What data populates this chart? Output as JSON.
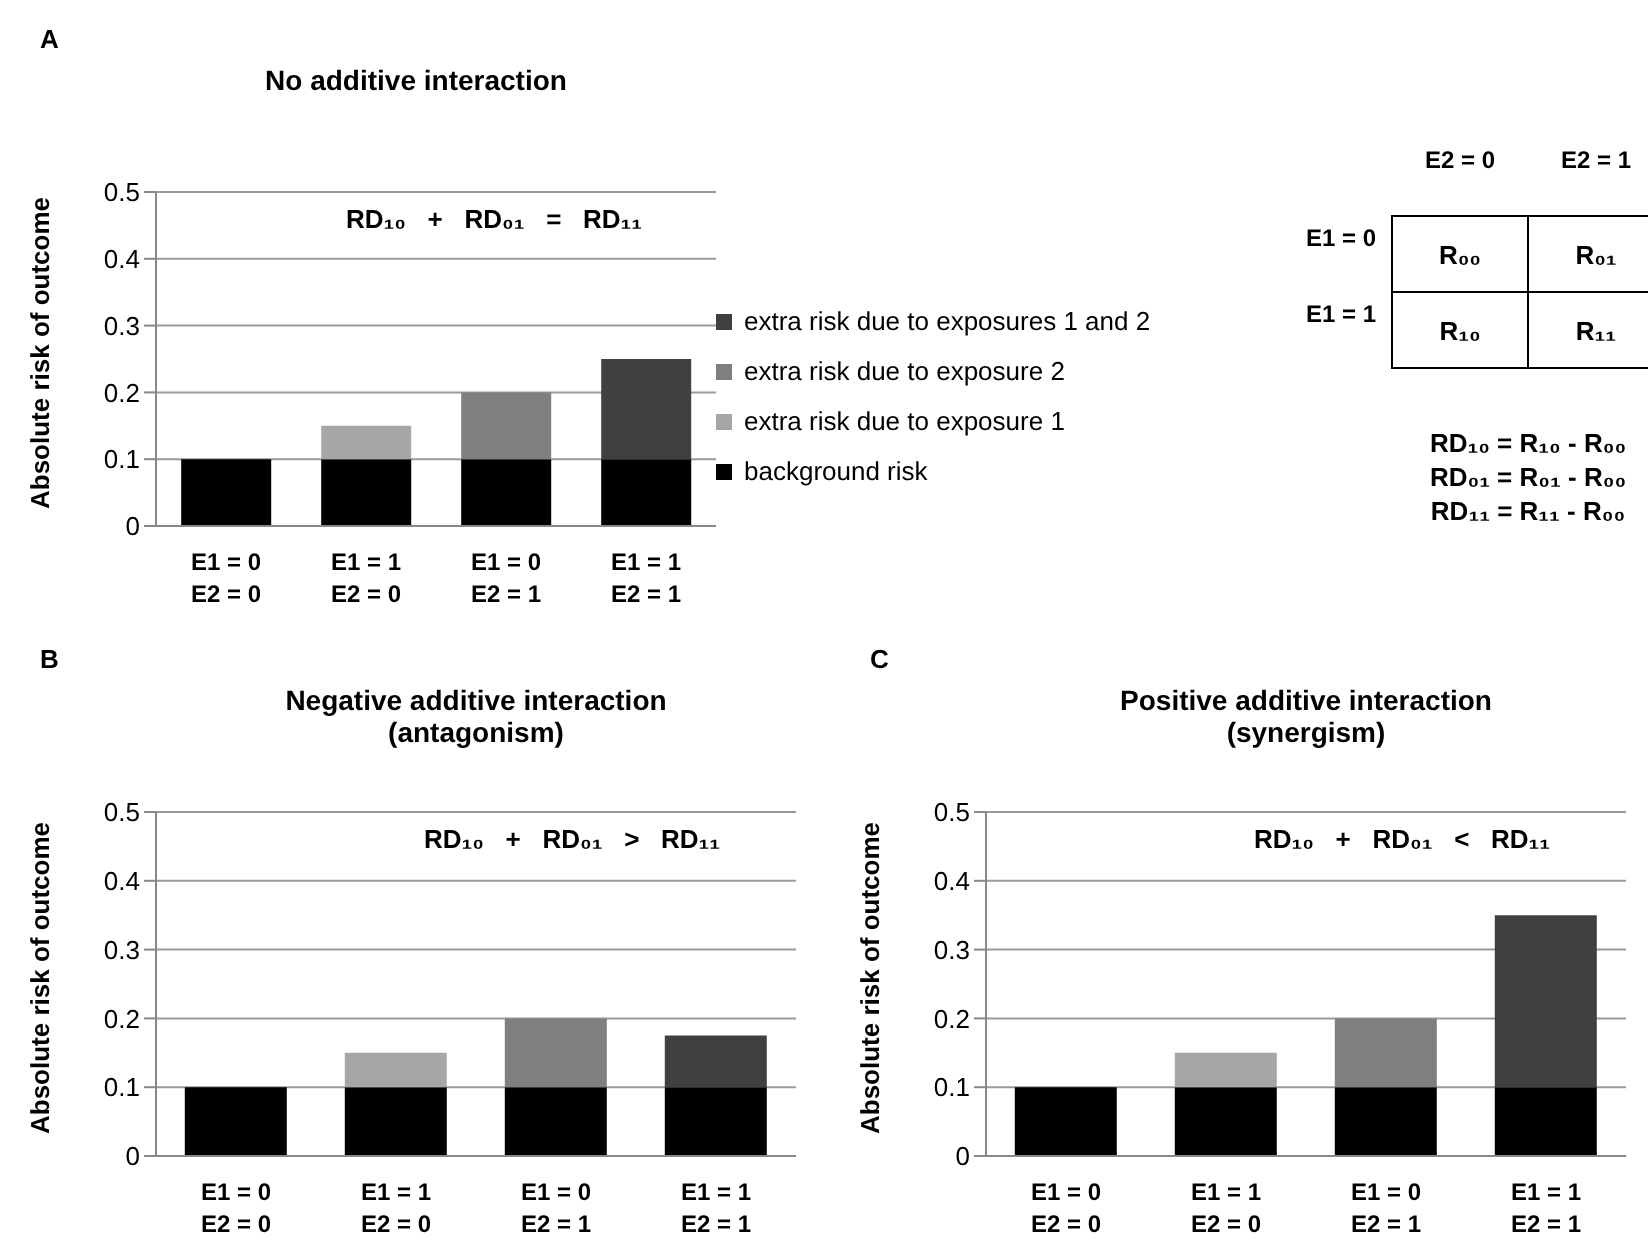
{
  "chart_data": [
    {
      "type": "bar",
      "title": "No additive interaction",
      "ylabel": "Absolute risk of outcome",
      "annotations": [
        "A",
        "RD₁₀   +   RD₀₁   =   RD₁₁"
      ],
      "categories": [
        "E1 = 0\nE2 = 0",
        "E1 = 1\nE2 = 0",
        "E1 = 0\nE2 = 1",
        "E1 = 1\nE2 = 1"
      ],
      "stacked": true,
      "ylim": [
        0,
        0.5
      ],
      "yticks": [
        0,
        0.1,
        0.2,
        0.3,
        0.4,
        0.5
      ],
      "grid": "y",
      "legend": "right",
      "series": [
        {
          "name": "background risk",
          "color": "#000000",
          "values": [
            0.1,
            0.1,
            0.1,
            0.1
          ]
        },
        {
          "name": "extra risk due to exposure 1",
          "color": "#a6a6a6",
          "values": [
            null,
            0.05,
            null,
            null
          ]
        },
        {
          "name": "extra risk due to exposure 2",
          "color": "#7f7f7f",
          "values": [
            null,
            null,
            0.1,
            null
          ]
        },
        {
          "name": "extra risk due to exposures 1 and 2",
          "color": "#404040",
          "values": [
            null,
            null,
            null,
            0.15
          ]
        }
      ]
    },
    {
      "type": "other",
      "categories": [
        "E2 = 0",
        "E2 = 1"
      ],
      "y_categories": [
        "E1 = 0",
        "E1 = 1"
      ],
      "cell_labels": [
        [
          "R₀₀",
          "R₀₁"
        ],
        [
          "R₁₀",
          "R₁₁"
        ]
      ],
      "annotations": [
        "RD₁₀ = R₁₀ - R₀₀",
        "RD₀₁ = R₀₁ - R₀₀",
        "RD₁₁ = R₁₁ - R₀₀"
      ]
    },
    {
      "type": "bar",
      "title": "Negative additive interaction\n(antagonism)",
      "ylabel": "Absolute risk of outcome",
      "annotations": [
        "B",
        "RD₁₀   +   RD₀₁   >   RD₁₁"
      ],
      "categories": [
        "E1 = 0\nE2 = 0",
        "E1 = 1\nE2 = 0",
        "E1 = 0\nE2 = 1",
        "E1 = 1\nE2 = 1"
      ],
      "stacked": true,
      "ylim": [
        0,
        0.5
      ],
      "yticks": [
        0,
        0.1,
        0.2,
        0.3,
        0.4,
        0.5
      ],
      "grid": "y",
      "series": [
        {
          "color": "#000000",
          "values": [
            0.1,
            0.1,
            0.1,
            0.1
          ]
        },
        {
          "color": "#a6a6a6",
          "values": [
            null,
            0.05,
            null,
            null
          ]
        },
        {
          "color": "#7f7f7f",
          "values": [
            null,
            null,
            0.1,
            null
          ]
        },
        {
          "color": "#404040",
          "values": [
            null,
            null,
            null,
            0.075
          ]
        }
      ]
    },
    {
      "type": "bar",
      "title": "Positive  additive interaction\n(synergism)",
      "ylabel": "Absolute risk of outcome",
      "annotations": [
        "C",
        "RD₁₀   +   RD₀₁   <   RD₁₁"
      ],
      "categories": [
        "E1 = 0\nE2 = 0",
        "E1 = 1\nE2 = 0",
        "E1 = 0\nE2 = 1",
        "E1 = 1\nE2 = 1"
      ],
      "stacked": true,
      "ylim": [
        0,
        0.5
      ],
      "yticks": [
        0,
        0.1,
        0.2,
        0.3,
        0.4,
        0.5
      ],
      "grid": "y",
      "series": [
        {
          "color": "#000000",
          "values": [
            0.1,
            0.1,
            0.1,
            0.1
          ]
        },
        {
          "color": "#a6a6a6",
          "values": [
            null,
            0.05,
            null,
            null
          ]
        },
        {
          "color": "#7f7f7f",
          "values": [
            null,
            null,
            0.1,
            null
          ]
        },
        {
          "color": "#404040",
          "values": [
            null,
            null,
            null,
            0.25
          ]
        }
      ]
    }
  ]
}
